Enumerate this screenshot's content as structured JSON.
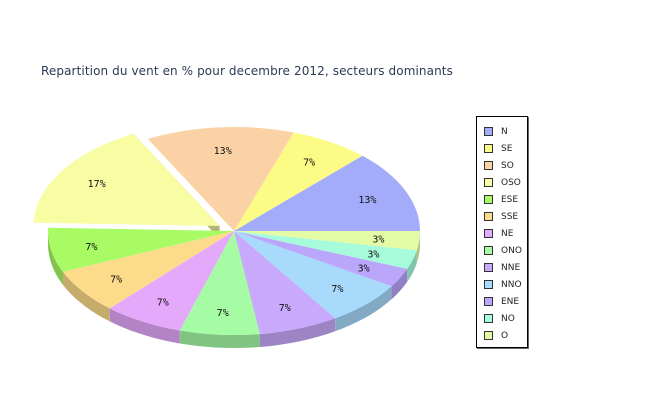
{
  "chart_data": {
    "type": "pie",
    "title": "Repartition du vent en % pour decembre 2012, secteurs dominants",
    "categories": [
      "N",
      "SE",
      "SO",
      "OSO",
      "ESE",
      "SSE",
      "NE",
      "ONO",
      "NNE",
      "NNO",
      "ENE",
      "NO",
      "O"
    ],
    "slices": [
      {
        "name": "N",
        "value": 13,
        "label": "13%",
        "color": "#a3acfb"
      },
      {
        "name": "SE",
        "value": 7,
        "label": "7%",
        "color": "#fbfb85"
      },
      {
        "name": "SO",
        "value": 13,
        "label": "13%",
        "color": "#fbd2a5"
      },
      {
        "name": "OSO",
        "value": 17,
        "label": "17%",
        "color": "#f8fca2",
        "exploded": true
      },
      {
        "name": "ESE",
        "value": 7,
        "label": "7%",
        "color": "#a8fb65"
      },
      {
        "name": "SSE",
        "value": 7,
        "label": "7%",
        "color": "#fcdc8a"
      },
      {
        "name": "NE",
        "value": 7,
        "label": "7%",
        "color": "#e5a9fc"
      },
      {
        "name": "ONO",
        "value": 7,
        "label": "7%",
        "color": "#a6fba5"
      },
      {
        "name": "NNE",
        "value": 7,
        "label": "7%",
        "color": "#c8a9fc"
      },
      {
        "name": "NNO",
        "value": 7,
        "label": "7%",
        "color": "#a8dafb"
      },
      {
        "name": "ENE",
        "value": 3,
        "label": "3%",
        "color": "#baa6fb"
      },
      {
        "name": "NO",
        "value": 3,
        "label": "3%",
        "color": "#a6fbdb"
      },
      {
        "name": "O",
        "value": 3,
        "label": "3%",
        "color": "#e3fba4"
      }
    ],
    "legend_position": "right"
  }
}
